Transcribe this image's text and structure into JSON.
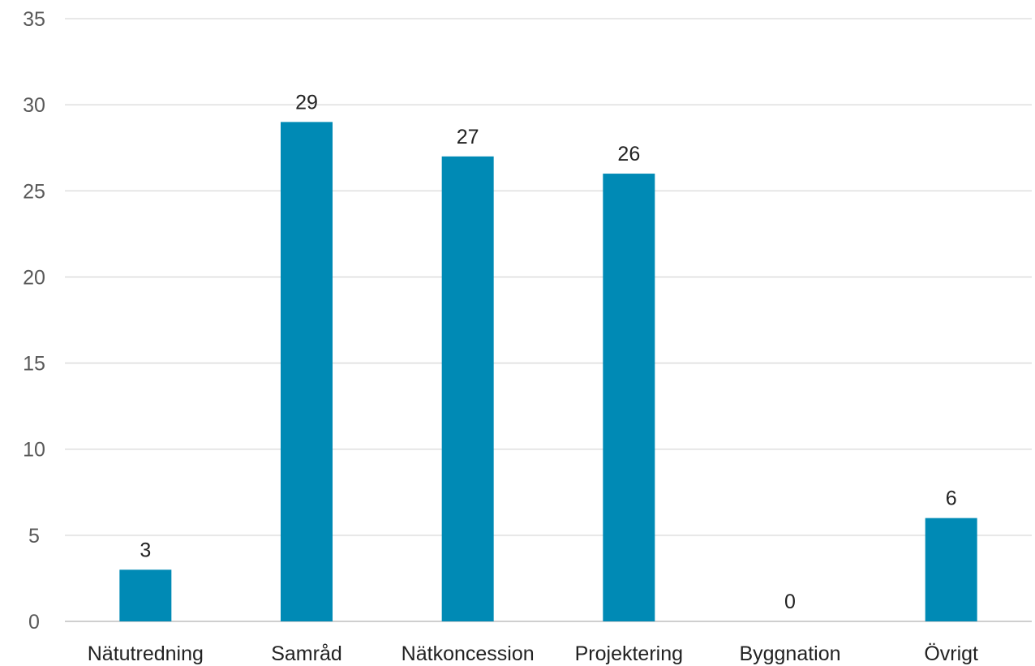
{
  "chart_data": {
    "type": "bar",
    "title": "",
    "xlabel": "",
    "ylabel": "",
    "categories": [
      "Nätutredning",
      "Samråd",
      "Nätkoncession",
      "Projektering",
      "Byggnation",
      "Övrigt"
    ],
    "values": [
      3,
      29,
      27,
      26,
      0,
      6
    ],
    "ylim": [
      0,
      35
    ],
    "yticks": [
      0,
      5,
      10,
      15,
      20,
      25,
      30,
      35
    ],
    "grid": true,
    "legend": "none",
    "colors": {
      "bar": "#008ab5"
    }
  }
}
